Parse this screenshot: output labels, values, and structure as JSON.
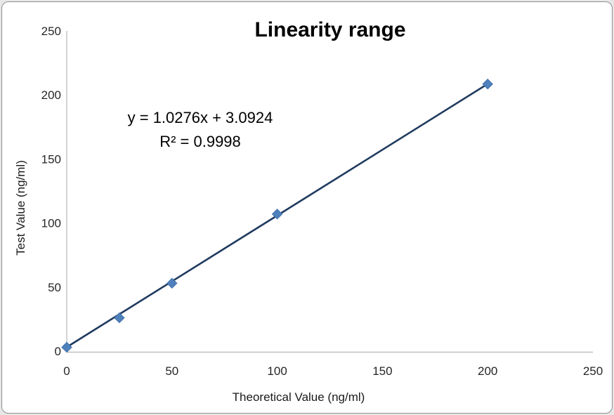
{
  "window": {
    "background_color": "#e7e7e7",
    "frame_border_color": "#8f8f8f",
    "frame_fill_color": "#ffffff"
  },
  "chart_data": {
    "type": "scatter",
    "title": "Linearity range",
    "xlabel": "Theoretical Value（ng/ml）",
    "ylabel": "Test Value（ng/ml）",
    "x": [
      0,
      25,
      50,
      100,
      200
    ],
    "y": [
      3,
      26,
      53,
      107,
      208.5
    ],
    "xlim": [
      0,
      250
    ],
    "ylim": [
      0,
      250
    ],
    "x_ticks": [
      0,
      50,
      100,
      150,
      200,
      250
    ],
    "y_ticks": [
      0,
      50,
      100,
      150,
      200,
      250
    ],
    "grid": false,
    "legend": false,
    "marker": {
      "shape": "diamond",
      "color": "#4f81bd",
      "edge_color": "#3f6fa8"
    },
    "trendline": {
      "slope": 1.0276,
      "intercept": 3.0924,
      "x_start": 0,
      "x_end": 200,
      "color": "#1f3a5f"
    },
    "annotations": {
      "equation": "y = 1.0276x + 3.0924",
      "r_squared": "R² = 0.9998"
    },
    "axis_color": "#bfbfbf",
    "tick_label_color": "#262626"
  }
}
